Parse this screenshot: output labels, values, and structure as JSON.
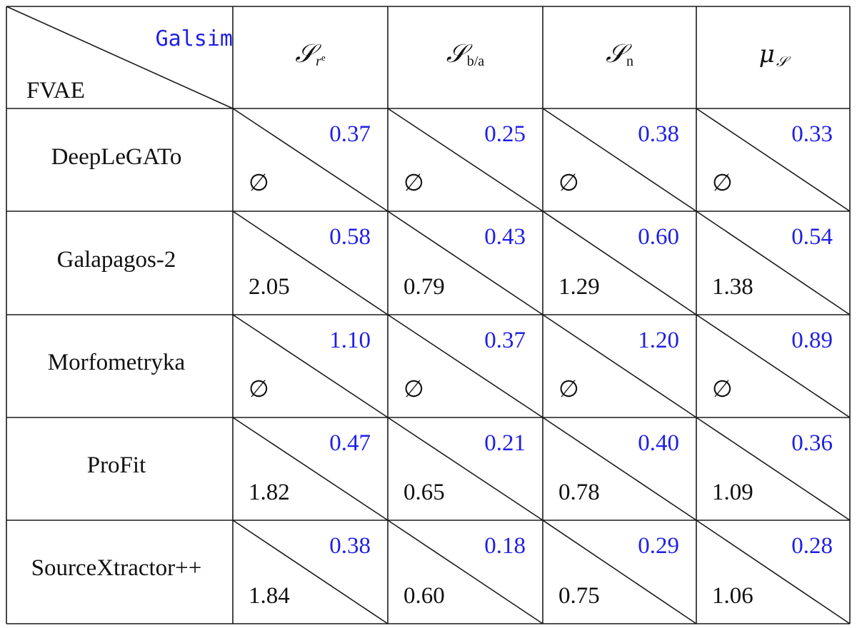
{
  "corner": {
    "top_right_label": "Galsim",
    "bottom_left_label": "FVAE"
  },
  "columns": [
    {
      "symbol": "𝒮",
      "subscript": "r",
      "subsub": "e"
    },
    {
      "symbol": "𝒮",
      "subscript": "b/a",
      "subsub": ""
    },
    {
      "symbol": "𝒮",
      "subscript": "n",
      "subsub": ""
    },
    {
      "symbol": "μ",
      "subscript": "𝒮",
      "subsub": ""
    }
  ],
  "rows": [
    {
      "label": "DeepLeGATo",
      "cells": [
        {
          "galsim": "0.37",
          "fvae": "∅"
        },
        {
          "galsim": "0.25",
          "fvae": "∅"
        },
        {
          "galsim": "0.38",
          "fvae": "∅"
        },
        {
          "galsim": "0.33",
          "fvae": "∅"
        }
      ]
    },
    {
      "label": "Galapagos-2",
      "cells": [
        {
          "galsim": "0.58",
          "fvae": "2.05"
        },
        {
          "galsim": "0.43",
          "fvae": "0.79"
        },
        {
          "galsim": "0.60",
          "fvae": "1.29"
        },
        {
          "galsim": "0.54",
          "fvae": "1.38"
        }
      ]
    },
    {
      "label": "Morfometryka",
      "cells": [
        {
          "galsim": "1.10",
          "fvae": "∅"
        },
        {
          "galsim": "0.37",
          "fvae": "∅"
        },
        {
          "galsim": "1.20",
          "fvae": "∅"
        },
        {
          "galsim": "0.89",
          "fvae": "∅"
        }
      ]
    },
    {
      "label": "ProFit",
      "cells": [
        {
          "galsim": "0.47",
          "fvae": "1.82"
        },
        {
          "galsim": "0.21",
          "fvae": "0.65"
        },
        {
          "galsim": "0.40",
          "fvae": "0.78"
        },
        {
          "galsim": "0.36",
          "fvae": "1.09"
        }
      ]
    },
    {
      "label": "SourceXtractor++",
      "cells": [
        {
          "galsim": "0.38",
          "fvae": "1.84"
        },
        {
          "galsim": "0.18",
          "fvae": "0.60"
        },
        {
          "galsim": "0.29",
          "fvae": "0.75"
        },
        {
          "galsim": "0.28",
          "fvae": "1.06"
        }
      ]
    }
  ],
  "colors": {
    "galsim": "#1f1fe6",
    "fvae": "#111111",
    "rule": "#1a1a1a"
  }
}
